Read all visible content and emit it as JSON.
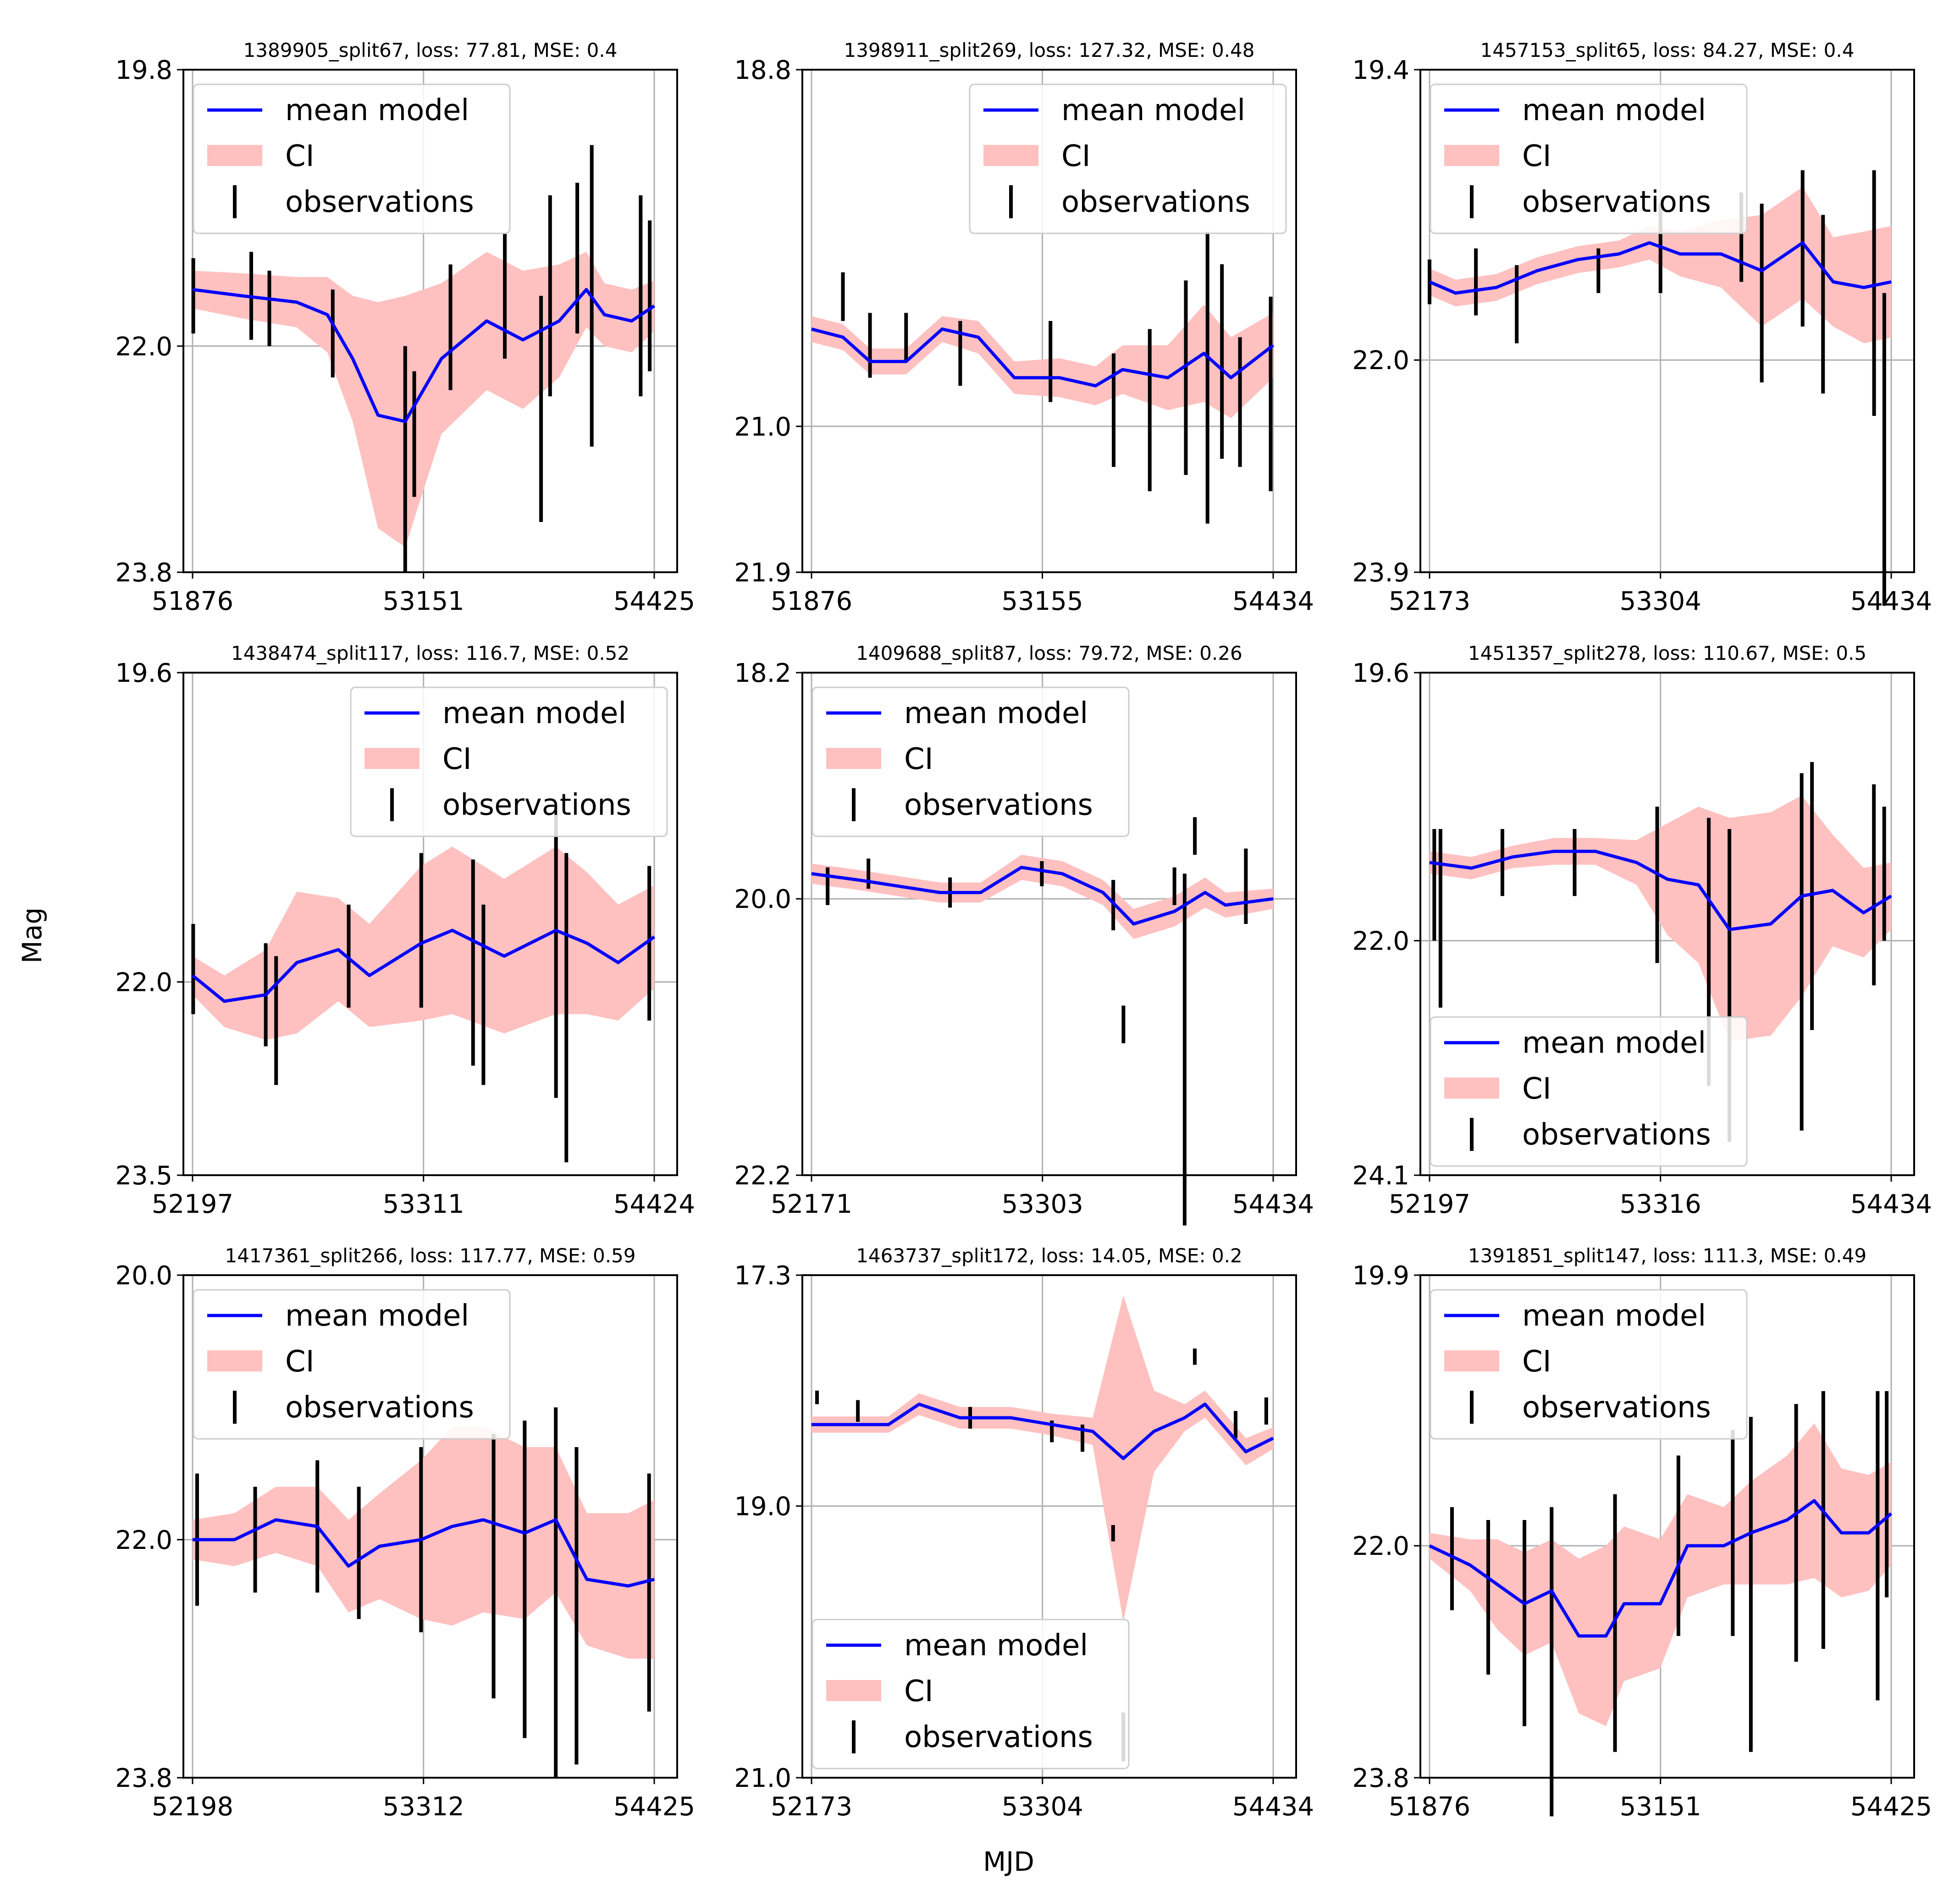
{
  "figure": {
    "xlabel": "MJD",
    "ylabel": "Mag",
    "colors": {
      "model": "#0000ff",
      "ci": "#ffc0c0",
      "obs": "#000000",
      "grid": "#b0b0b0"
    },
    "legend_labels": [
      "mean model",
      "CI",
      "observations"
    ]
  },
  "chart_data": [
    {
      "type": "line",
      "title": "1389905_split67, loss: 77.81, MSE: 0.4",
      "xticks": [
        "51876",
        "53151",
        "54425"
      ],
      "yticks": [
        "19.8",
        "22.0",
        "23.8"
      ],
      "xlim": [
        51876,
        54425
      ],
      "ylim": [
        19.8,
        23.8
      ],
      "legend": "top-left",
      "model": [
        [
          51876,
          21.55
        ],
        [
          52150,
          21.6
        ],
        [
          52450,
          21.65
        ],
        [
          52620,
          21.75
        ],
        [
          52760,
          22.1
        ],
        [
          52900,
          22.55
        ],
        [
          53050,
          22.6
        ],
        [
          53250,
          22.1
        ],
        [
          53500,
          21.8
        ],
        [
          53700,
          21.95
        ],
        [
          53900,
          21.8
        ],
        [
          54050,
          21.55
        ],
        [
          54150,
          21.75
        ],
        [
          54300,
          21.8
        ],
        [
          54425,
          21.68
        ]
      ],
      "ci_half": [
        0.15,
        0.18,
        0.2,
        0.3,
        0.5,
        0.9,
        1.0,
        0.6,
        0.55,
        0.55,
        0.45,
        0.3,
        0.25,
        0.25,
        0.2
      ],
      "obs": [
        [
          51880,
          21.6,
          0.3
        ],
        [
          52200,
          21.6,
          0.35
        ],
        [
          52300,
          21.7,
          0.3
        ],
        [
          52650,
          21.9,
          0.35
        ],
        [
          53050,
          22.9,
          0.9
        ],
        [
          53100,
          22.7,
          0.5
        ],
        [
          53300,
          21.85,
          0.5
        ],
        [
          53600,
          21.6,
          0.5
        ],
        [
          53800,
          22.5,
          0.9
        ],
        [
          53850,
          21.6,
          0.8
        ],
        [
          54000,
          21.3,
          0.6
        ],
        [
          54080,
          21.6,
          1.2
        ],
        [
          54350,
          21.6,
          0.8
        ],
        [
          54400,
          21.6,
          0.6
        ]
      ]
    },
    {
      "type": "line",
      "title": "1398911_split269, loss: 127.32, MSE: 0.48",
      "xticks": [
        "51876",
        "53155",
        "54434"
      ],
      "yticks": [
        "18.8",
        "21.0",
        "21.9"
      ],
      "xlim": [
        51876,
        54434
      ],
      "ylim": [
        18.8,
        21.9
      ],
      "legend": "top-right",
      "model": [
        [
          51876,
          20.4
        ],
        [
          52050,
          20.45
        ],
        [
          52200,
          20.6
        ],
        [
          52400,
          20.6
        ],
        [
          52600,
          20.4
        ],
        [
          52800,
          20.45
        ],
        [
          53000,
          20.7
        ],
        [
          53250,
          20.7
        ],
        [
          53450,
          20.75
        ],
        [
          53600,
          20.65
        ],
        [
          53850,
          20.7
        ],
        [
          54050,
          20.55
        ],
        [
          54200,
          20.7
        ],
        [
          54434,
          20.5
        ]
      ],
      "ci_half": [
        0.08,
        0.08,
        0.08,
        0.08,
        0.08,
        0.1,
        0.1,
        0.12,
        0.12,
        0.15,
        0.2,
        0.3,
        0.25,
        0.2
      ],
      "obs": [
        [
          52050,
          20.2,
          0.15
        ],
        [
          52200,
          20.5,
          0.2
        ],
        [
          52400,
          20.45,
          0.15
        ],
        [
          52700,
          20.55,
          0.2
        ],
        [
          53200,
          20.6,
          0.25
        ],
        [
          53550,
          20.9,
          0.35
        ],
        [
          53750,
          20.9,
          0.5
        ],
        [
          53950,
          20.7,
          0.6
        ],
        [
          54070,
          20.7,
          0.9
        ],
        [
          54150,
          20.6,
          0.6
        ],
        [
          54250,
          20.85,
          0.4
        ],
        [
          54420,
          20.8,
          0.6
        ]
      ]
    },
    {
      "type": "line",
      "title": "1457153_split65, loss: 84.27, MSE: 0.4",
      "xticks": [
        "52173",
        "53304",
        "54434"
      ],
      "yticks": [
        "19.4",
        "22.0",
        "23.9"
      ],
      "xlim": [
        52173,
        54434
      ],
      "ylim": [
        19.4,
        23.9
      ],
      "legend": "top-left",
      "model": [
        [
          52173,
          21.3
        ],
        [
          52300,
          21.4
        ],
        [
          52500,
          21.35
        ],
        [
          52700,
          21.2
        ],
        [
          52900,
          21.1
        ],
        [
          53100,
          21.05
        ],
        [
          53250,
          20.95
        ],
        [
          53400,
          21.05
        ],
        [
          53600,
          21.05
        ],
        [
          53800,
          21.2
        ],
        [
          54000,
          20.95
        ],
        [
          54150,
          21.3
        ],
        [
          54300,
          21.35
        ],
        [
          54434,
          21.3
        ]
      ],
      "ci_half": [
        0.12,
        0.12,
        0.12,
        0.12,
        0.12,
        0.12,
        0.15,
        0.2,
        0.3,
        0.5,
        0.5,
        0.4,
        0.5,
        0.5
      ],
      "obs": [
        [
          52173,
          21.3,
          0.2
        ],
        [
          52400,
          21.3,
          0.3
        ],
        [
          52600,
          21.5,
          0.35
        ],
        [
          53000,
          21.2,
          0.2
        ],
        [
          53304,
          21.0,
          0.4
        ],
        [
          53700,
          20.9,
          0.4
        ],
        [
          53800,
          21.4,
          0.8
        ],
        [
          54000,
          21.0,
          0.7
        ],
        [
          54100,
          21.5,
          0.8
        ],
        [
          54350,
          21.4,
          1.1
        ],
        [
          54400,
          22.8,
          1.4
        ]
      ]
    },
    {
      "type": "line",
      "title": "1438474_split117, loss: 116.7, MSE: 0.52",
      "xticks": [
        "52197",
        "53311",
        "54424"
      ],
      "yticks": [
        "19.6",
        "22.0",
        "23.5"
      ],
      "xlim": [
        52197,
        54424
      ],
      "ylim": [
        19.6,
        23.5
      ],
      "legend": "top-right",
      "model": [
        [
          52197,
          21.95
        ],
        [
          52350,
          22.15
        ],
        [
          52550,
          22.1
        ],
        [
          52700,
          21.85
        ],
        [
          52900,
          21.75
        ],
        [
          53050,
          21.95
        ],
        [
          53300,
          21.7
        ],
        [
          53450,
          21.6
        ],
        [
          53700,
          21.8
        ],
        [
          53950,
          21.6
        ],
        [
          54100,
          21.7
        ],
        [
          54250,
          21.85
        ],
        [
          54424,
          21.65
        ]
      ],
      "ci_half": [
        0.15,
        0.2,
        0.35,
        0.55,
        0.4,
        0.4,
        0.6,
        0.65,
        0.6,
        0.65,
        0.55,
        0.45,
        0.4
      ],
      "obs": [
        [
          52200,
          21.9,
          0.35
        ],
        [
          52550,
          22.1,
          0.4
        ],
        [
          52600,
          22.3,
          0.5
        ],
        [
          52950,
          21.8,
          0.4
        ],
        [
          53300,
          21.6,
          0.6
        ],
        [
          53550,
          21.85,
          0.8
        ],
        [
          53600,
          22.1,
          0.7
        ],
        [
          53950,
          21.8,
          1.1
        ],
        [
          54000,
          22.2,
          1.2
        ],
        [
          54400,
          21.7,
          0.6
        ]
      ]
    },
    {
      "type": "line",
      "title": "1409688_split87, loss: 79.72, MSE: 0.26",
      "xticks": [
        "52171",
        "53303",
        "54434"
      ],
      "yticks": [
        "18.2",
        "20.0",
        "22.2"
      ],
      "xlim": [
        52171,
        54434
      ],
      "ylim": [
        18.2,
        22.2
      ],
      "legend": "top-left",
      "model": [
        [
          52171,
          19.8
        ],
        [
          52400,
          19.85
        ],
        [
          52600,
          19.9
        ],
        [
          52800,
          19.95
        ],
        [
          53000,
          19.95
        ],
        [
          53200,
          19.75
        ],
        [
          53400,
          19.8
        ],
        [
          53600,
          19.95
        ],
        [
          53750,
          20.2
        ],
        [
          53950,
          20.1
        ],
        [
          54100,
          19.95
        ],
        [
          54200,
          20.05
        ],
        [
          54434,
          20.0
        ]
      ],
      "ci_half": [
        0.08,
        0.08,
        0.08,
        0.08,
        0.08,
        0.1,
        0.1,
        0.1,
        0.12,
        0.12,
        0.12,
        0.1,
        0.08
      ],
      "obs": [
        [
          52250,
          19.9,
          0.15
        ],
        [
          52450,
          19.8,
          0.12
        ],
        [
          52850,
          19.95,
          0.12
        ],
        [
          53300,
          19.8,
          0.1
        ],
        [
          53650,
          20.05,
          0.2
        ],
        [
          53700,
          21.0,
          0.15
        ],
        [
          53950,
          19.9,
          0.15
        ],
        [
          54000,
          21.2,
          1.4
        ],
        [
          54050,
          19.5,
          0.15
        ],
        [
          54300,
          19.9,
          0.3
        ]
      ]
    },
    {
      "type": "line",
      "title": "1451357_split278, loss: 110.67, MSE: 0.5",
      "xticks": [
        "52197",
        "53316",
        "54434"
      ],
      "yticks": [
        "19.6",
        "22.0",
        "24.1"
      ],
      "xlim": [
        52197,
        54434
      ],
      "ylim": [
        19.6,
        24.1
      ],
      "legend": "bottom-left",
      "model": [
        [
          52197,
          21.3
        ],
        [
          52400,
          21.35
        ],
        [
          52600,
          21.25
        ],
        [
          52800,
          21.2
        ],
        [
          53000,
          21.2
        ],
        [
          53200,
          21.3
        ],
        [
          53350,
          21.45
        ],
        [
          53500,
          21.5
        ],
        [
          53650,
          21.9
        ],
        [
          53850,
          21.85
        ],
        [
          54000,
          21.6
        ],
        [
          54150,
          21.55
        ],
        [
          54300,
          21.75
        ],
        [
          54434,
          21.6
        ]
      ],
      "ci_half": [
        0.1,
        0.1,
        0.1,
        0.12,
        0.12,
        0.2,
        0.5,
        0.7,
        1.0,
        1.0,
        0.9,
        0.5,
        0.4,
        0.3
      ],
      "obs": [
        [
          52220,
          21.5,
          0.5
        ],
        [
          52250,
          21.8,
          0.8
        ],
        [
          52550,
          21.3,
          0.3
        ],
        [
          52900,
          21.3,
          0.3
        ],
        [
          53300,
          21.5,
          0.7
        ],
        [
          53550,
          22.1,
          1.2
        ],
        [
          53650,
          22.4,
          1.4
        ],
        [
          54000,
          22.1,
          1.6
        ],
        [
          54050,
          21.6,
          1.2
        ],
        [
          54350,
          21.5,
          0.9
        ],
        [
          54400,
          21.4,
          0.6
        ]
      ]
    },
    {
      "type": "line",
      "title": "1417361_split266, loss: 117.77, MSE: 0.59",
      "xticks": [
        "52198",
        "53312",
        "54425"
      ],
      "yticks": [
        "20.0",
        "22.0",
        "23.8"
      ],
      "xlim": [
        52198,
        54425
      ],
      "ylim": [
        20.0,
        23.8
      ],
      "legend": "top-left",
      "model": [
        [
          52198,
          22.0
        ],
        [
          52400,
          22.0
        ],
        [
          52600,
          21.85
        ],
        [
          52800,
          21.9
        ],
        [
          52950,
          22.2
        ],
        [
          53100,
          22.05
        ],
        [
          53300,
          22.0
        ],
        [
          53450,
          21.9
        ],
        [
          53600,
          21.85
        ],
        [
          53800,
          21.95
        ],
        [
          53950,
          21.85
        ],
        [
          54100,
          22.3
        ],
        [
          54300,
          22.35
        ],
        [
          54425,
          22.3
        ]
      ],
      "ci_half": [
        0.15,
        0.2,
        0.25,
        0.3,
        0.35,
        0.4,
        0.6,
        0.75,
        0.7,
        0.65,
        0.55,
        0.5,
        0.55,
        0.6
      ],
      "obs": [
        [
          52220,
          22.0,
          0.5
        ],
        [
          52500,
          22.0,
          0.4
        ],
        [
          52800,
          21.9,
          0.5
        ],
        [
          53000,
          22.1,
          0.5
        ],
        [
          53300,
          22.0,
          0.7
        ],
        [
          53650,
          22.2,
          1.0
        ],
        [
          53800,
          22.3,
          1.2
        ],
        [
          53950,
          22.4,
          1.4
        ],
        [
          54050,
          22.5,
          1.2
        ],
        [
          54400,
          22.4,
          0.9
        ]
      ]
    },
    {
      "type": "line",
      "title": "1463737_split172, loss: 14.05, MSE: 0.2",
      "xticks": [
        "52173",
        "53304",
        "54434"
      ],
      "yticks": [
        "17.3",
        "19.0",
        "21.0"
      ],
      "xlim": [
        52173,
        54434
      ],
      "ylim": [
        17.3,
        21.0
      ],
      "legend": "bottom-left",
      "model": [
        [
          52173,
          18.4
        ],
        [
          52400,
          18.4
        ],
        [
          52550,
          18.4
        ],
        [
          52700,
          18.25
        ],
        [
          52900,
          18.35
        ],
        [
          53150,
          18.35
        ],
        [
          53350,
          18.4
        ],
        [
          53550,
          18.45
        ],
        [
          53700,
          18.65
        ],
        [
          53850,
          18.45
        ],
        [
          54000,
          18.35
        ],
        [
          54100,
          18.25
        ],
        [
          54300,
          18.6
        ],
        [
          54434,
          18.5
        ]
      ],
      "ci_half": [
        0.06,
        0.06,
        0.06,
        0.08,
        0.08,
        0.08,
        0.08,
        0.1,
        1.2,
        0.3,
        0.1,
        0.1,
        0.1,
        0.08
      ],
      "obs": [
        [
          52200,
          18.2,
          0.05
        ],
        [
          52400,
          18.3,
          0.08
        ],
        [
          52950,
          18.35,
          0.08
        ],
        [
          53350,
          18.45,
          0.08
        ],
        [
          53500,
          18.5,
          0.1
        ],
        [
          53650,
          19.2,
          0.06
        ],
        [
          53700,
          20.7,
          0.18
        ],
        [
          54050,
          17.9,
          0.06
        ],
        [
          54250,
          18.4,
          0.1
        ],
        [
          54400,
          18.3,
          0.1
        ]
      ]
    },
    {
      "type": "line",
      "title": "1391851_split147, loss: 111.3, MSE: 0.49",
      "xticks": [
        "51876",
        "53151",
        "54425"
      ],
      "yticks": [
        "19.9",
        "22.0",
        "23.8"
      ],
      "xlim": [
        51876,
        54425
      ],
      "ylim": [
        19.9,
        23.8
      ],
      "legend": "top-left",
      "model": [
        [
          51876,
          22.0
        ],
        [
          52100,
          22.15
        ],
        [
          52250,
          22.3
        ],
        [
          52400,
          22.45
        ],
        [
          52550,
          22.35
        ],
        [
          52700,
          22.7
        ],
        [
          52850,
          22.7
        ],
        [
          52950,
          22.45
        ],
        [
          53150,
          22.45
        ],
        [
          53300,
          22.0
        ],
        [
          53500,
          22.0
        ],
        [
          53650,
          21.9
        ],
        [
          53850,
          21.8
        ],
        [
          54000,
          21.65
        ],
        [
          54150,
          21.9
        ],
        [
          54300,
          21.9
        ],
        [
          54425,
          21.75
        ]
      ],
      "ci_half": [
        0.1,
        0.2,
        0.35,
        0.4,
        0.4,
        0.6,
        0.7,
        0.6,
        0.5,
        0.4,
        0.3,
        0.4,
        0.5,
        0.6,
        0.5,
        0.45,
        0.4
      ],
      "obs": [
        [
          52000,
          22.1,
          0.4
        ],
        [
          52200,
          22.4,
          0.6
        ],
        [
          52400,
          22.6,
          0.8
        ],
        [
          52550,
          22.9,
          1.2
        ],
        [
          52900,
          22.6,
          1.0
        ],
        [
          53250,
          22.0,
          0.7
        ],
        [
          53550,
          21.9,
          0.8
        ],
        [
          53650,
          22.3,
          1.3
        ],
        [
          53900,
          21.9,
          1.0
        ],
        [
          54050,
          21.8,
          1.0
        ],
        [
          54350,
          22.0,
          1.2
        ],
        [
          54400,
          21.6,
          0.8
        ]
      ]
    }
  ]
}
